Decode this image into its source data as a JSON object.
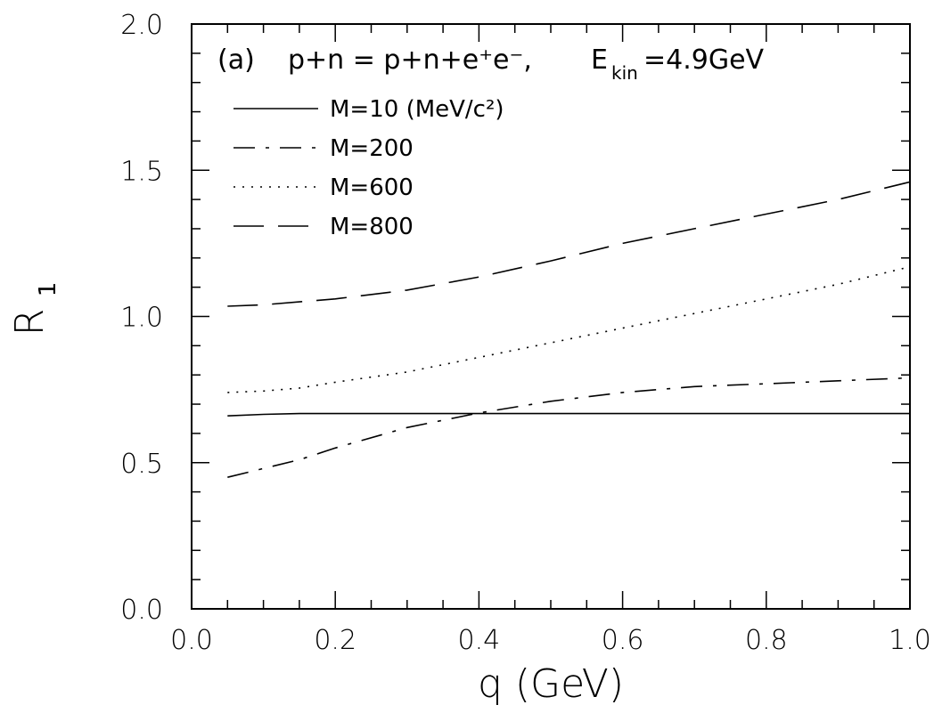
{
  "chart_data": {
    "type": "line",
    "annotation": {
      "panel": "(a)",
      "reaction": "p+n  =  p+n+e⁺e⁻,",
      "energy_prefix": "E",
      "energy_sub": "kin",
      "energy_value": "=4.9GeV"
    },
    "xlabel": "q  (GeV)",
    "ylabel_main": "R",
    "ylabel_sub": "1",
    "xlim": [
      0.0,
      1.0
    ],
    "ylim": [
      0.0,
      2.0
    ],
    "xticks": [
      "0.0",
      "0.2",
      "0.4",
      "0.6",
      "0.8",
      "1.0"
    ],
    "yticks": [
      "0.0",
      "0.5",
      "1.0",
      "1.5",
      "2.0"
    ],
    "grid": false,
    "legend_position": "top-left",
    "series": [
      {
        "name": "M=10  (MeV/c²)",
        "style": "solid",
        "x": [
          0.05,
          0.1,
          0.15,
          0.2,
          0.3,
          0.4,
          0.5,
          0.6,
          0.7,
          0.8,
          0.9,
          1.0
        ],
        "y": [
          0.66,
          0.665,
          0.668,
          0.668,
          0.668,
          0.668,
          0.668,
          0.668,
          0.668,
          0.668,
          0.668,
          0.668
        ]
      },
      {
        "name": "M=200",
        "style": "dashdot",
        "x": [
          0.05,
          0.1,
          0.15,
          0.2,
          0.3,
          0.4,
          0.5,
          0.6,
          0.7,
          0.8,
          0.9,
          1.0
        ],
        "y": [
          0.45,
          0.48,
          0.51,
          0.55,
          0.62,
          0.67,
          0.71,
          0.74,
          0.76,
          0.77,
          0.78,
          0.79
        ]
      },
      {
        "name": "M=600",
        "style": "dotted",
        "x": [
          0.05,
          0.1,
          0.15,
          0.2,
          0.3,
          0.4,
          0.5,
          0.6,
          0.7,
          0.8,
          0.9,
          1.0
        ],
        "y": [
          0.74,
          0.745,
          0.755,
          0.775,
          0.81,
          0.86,
          0.91,
          0.96,
          1.01,
          1.06,
          1.11,
          1.17
        ]
      },
      {
        "name": "M=800",
        "style": "longdash",
        "x": [
          0.05,
          0.1,
          0.15,
          0.2,
          0.3,
          0.4,
          0.5,
          0.6,
          0.7,
          0.8,
          0.9,
          1.0
        ],
        "y": [
          1.035,
          1.04,
          1.05,
          1.06,
          1.09,
          1.135,
          1.19,
          1.25,
          1.3,
          1.35,
          1.4,
          1.46
        ]
      }
    ]
  }
}
